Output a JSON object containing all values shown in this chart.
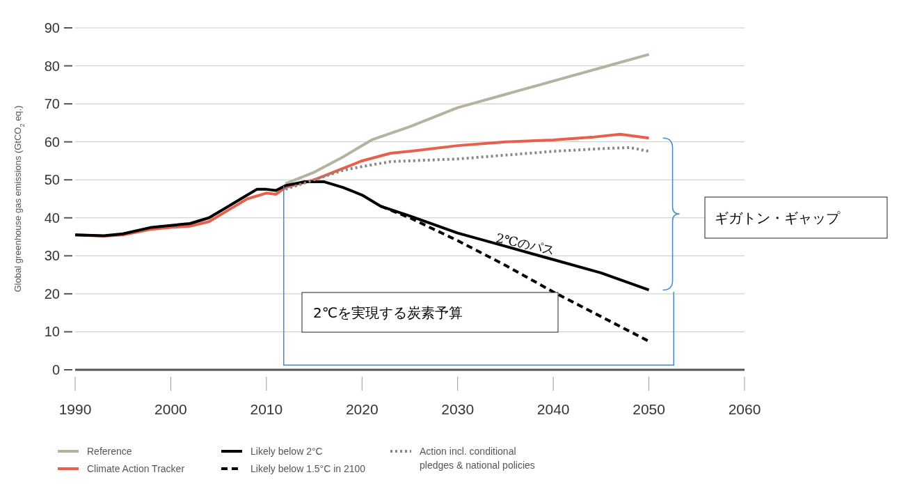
{
  "chart_data": {
    "type": "line",
    "ylabel": "Global greenhouse gas emissions (GtCO$_{2}$ eq.)",
    "xlim": [
      1990,
      2060
    ],
    "xticks": [
      1990,
      2000,
      2010,
      2020,
      2030,
      2040,
      2050,
      2060
    ],
    "ylim": [
      0,
      90
    ],
    "yticks": [
      0,
      10,
      20,
      30,
      40,
      50,
      60,
      70,
      80,
      90
    ],
    "grid": "y",
    "legend": "bottom",
    "line_style": "solid",
    "marker": "none",
    "series": [
      {
        "name": "Reference",
        "color": "#b5b29f",
        "x": [
          2012,
          2015,
          2018,
          2021,
          2025,
          2030,
          2035,
          2040,
          2045,
          2050
        ],
        "values": [
          49,
          52,
          56,
          60.5,
          64,
          69,
          72.5,
          76,
          79.5,
          83
        ]
      },
      {
        "name": "Climate Action Tracker",
        "color": "#e8604c",
        "x": [
          1990,
          1993,
          1995,
          1998,
          2000,
          2002,
          2004,
          2006,
          2008,
          2010,
          2011,
          2012,
          2015,
          2018,
          2020,
          2023,
          2025,
          2030,
          2035,
          2040,
          2044,
          2047,
          2050
        ],
        "values": [
          35.5,
          35.2,
          35.5,
          37,
          37.5,
          37.8,
          39,
          42,
          45,
          46.5,
          46.2,
          48,
          50,
          53,
          55,
          57,
          57.5,
          59,
          60,
          60.5,
          61.2,
          62,
          61
        ]
      },
      {
        "name": "Likely below 2°C",
        "color": "#000000",
        "x": [
          1990,
          1993,
          1995,
          1998,
          2000,
          2002,
          2004,
          2006,
          2008,
          2009,
          2010,
          2011,
          2012,
          2014,
          2016,
          2018,
          2020,
          2022,
          2025,
          2030,
          2035,
          2040,
          2045,
          2050
        ],
        "values": [
          35.5,
          35.3,
          35.8,
          37.5,
          38,
          38.5,
          40,
          43,
          46,
          47.5,
          47.5,
          47.2,
          48.5,
          49.5,
          49.5,
          48,
          46,
          43,
          40.5,
          36,
          32.5,
          29,
          25.5,
          21
        ]
      },
      {
        "name": "Likely below 1.5°C in 2100",
        "color": "#000000",
        "line_style": "dashed",
        "x": [
          2022,
          2025,
          2030,
          2035,
          2040,
          2045,
          2050
        ],
        "values": [
          43,
          40,
          34,
          27.5,
          20.5,
          14,
          7.5
        ]
      },
      {
        "name": "Action incl. conditional pledges & national policies",
        "color": "#888888",
        "line_style": "dotted",
        "x": [
          2012,
          2015,
          2018,
          2020,
          2023,
          2025,
          2030,
          2035,
          2040,
          2045,
          2048,
          2050
        ],
        "values": [
          47.5,
          50,
          52.5,
          53.5,
          54.8,
          55,
          55.5,
          56.5,
          57.5,
          58.2,
          58.5,
          57.5
        ]
      }
    ],
    "annotations": [
      {
        "text": "2℃のパス",
        "x": 2037,
        "y": 32
      },
      "ギガトン・ギャップ",
      "2℃を実現する炭素予算"
    ]
  }
}
